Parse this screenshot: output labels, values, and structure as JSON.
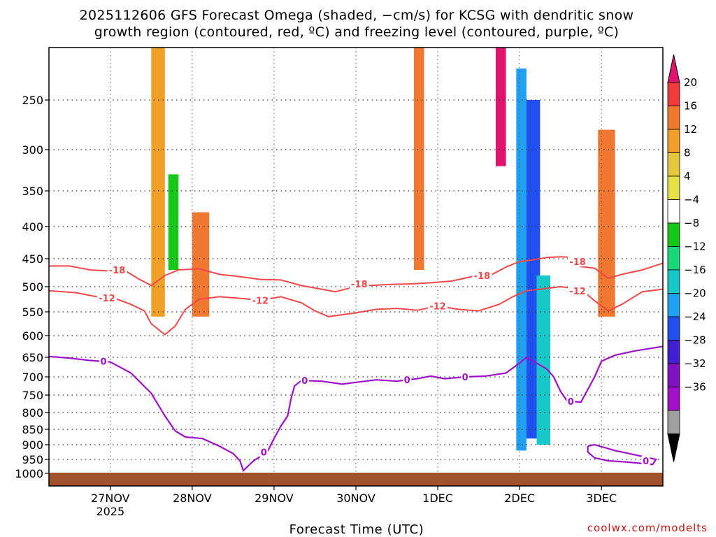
{
  "chart_data": {
    "type": "heatmap",
    "title_line1": "2025112606 GFS Forecast Omega (shaded, −cm/s) for KCSG with dendritic snow",
    "title_line2": "growth region (contoured, red, ºC) and freezing level (contoured, purple, ºC)",
    "xlabel": "Forecast Time (UTC)",
    "credit": "coolwx.com/modelts",
    "x_ticks": [
      {
        "label": "27NOV",
        "sub": "2025",
        "hour": 18
      },
      {
        "label": "28NOV",
        "sub": "",
        "hour": 42
      },
      {
        "label": "29NOV",
        "sub": "",
        "hour": 66
      },
      {
        "label": "30NOV",
        "sub": "",
        "hour": 90
      },
      {
        "label": "1DEC",
        "sub": "",
        "hour": 114
      },
      {
        "label": "2DEC",
        "sub": "",
        "hour": 138
      },
      {
        "label": "3DEC",
        "sub": "",
        "hour": 162
      }
    ],
    "x_range_hours": [
      0,
      180
    ],
    "y_ticks": [
      {
        "label": "250",
        "p": 250
      },
      {
        "label": "300",
        "p": 300
      },
      {
        "label": "350",
        "p": 350
      },
      {
        "label": "400",
        "p": 400
      },
      {
        "label": "450",
        "p": 450
      },
      {
        "label": "500",
        "p": 500
      },
      {
        "label": "550",
        "p": 550
      },
      {
        "label": "600",
        "p": 600
      },
      {
        "label": "650",
        "p": 650
      },
      {
        "label": "700",
        "p": 700
      },
      {
        "label": "750",
        "p": 750
      },
      {
        "label": "800",
        "p": 800
      },
      {
        "label": "850",
        "p": 850
      },
      {
        "label": "900",
        "p": 900
      },
      {
        "label": "950",
        "p": 950
      },
      {
        "label": "1000",
        "p": 1000
      }
    ],
    "y_range_hPa": [
      200,
      1020
    ],
    "surface_pressure_hPa": 1000,
    "colorbar": {
      "labels": [
        "20",
        "16",
        "12",
        "8",
        "4",
        "−4",
        "−8",
        "−12",
        "−16",
        "−20",
        "−24",
        "−28",
        "−32",
        "−36"
      ],
      "colors": [
        "#e0146e",
        "#f03c3c",
        "#f07830",
        "#f0a028",
        "#e6c83c",
        "#e6e046",
        "#ffffff",
        "#18c818",
        "#18d878",
        "#18c8c8",
        "#20a0f0",
        "#2050f0",
        "#4020d0",
        "#8010c0",
        "#a010c8",
        "#a0a0a0",
        "#000000"
      ]
    },
    "contours": {
      "dgz_top_label": "-18",
      "dgz_bottom_label": "-12",
      "freezing_label": "0",
      "dgz_top_hPa": [
        [
          0,
          463
        ],
        [
          6,
          463
        ],
        [
          12,
          470
        ],
        [
          18,
          472
        ],
        [
          22,
          470
        ],
        [
          26,
          485
        ],
        [
          30,
          498
        ],
        [
          34,
          480
        ],
        [
          38,
          470
        ],
        [
          44,
          468
        ],
        [
          50,
          478
        ],
        [
          56,
          482
        ],
        [
          62,
          487
        ],
        [
          68,
          488
        ],
        [
          74,
          498
        ],
        [
          80,
          505
        ],
        [
          84,
          510
        ],
        [
          88,
          503
        ],
        [
          94,
          498
        ],
        [
          100,
          496
        ],
        [
          106,
          495
        ],
        [
          112,
          493
        ],
        [
          118,
          490
        ],
        [
          124,
          482
        ],
        [
          130,
          478
        ],
        [
          134,
          465
        ],
        [
          138,
          455
        ],
        [
          142,
          452
        ],
        [
          146,
          448
        ],
        [
          150,
          447
        ],
        [
          154,
          448
        ],
        [
          156,
          464
        ],
        [
          160,
          467
        ],
        [
          164,
          485
        ],
        [
          168,
          478
        ],
        [
          174,
          470
        ],
        [
          180,
          458
        ]
      ],
      "dgz_bottom_hPa": [
        [
          0,
          508
        ],
        [
          8,
          512
        ],
        [
          14,
          520
        ],
        [
          20,
          525
        ],
        [
          24,
          535
        ],
        [
          28,
          548
        ],
        [
          30,
          575
        ],
        [
          34,
          598
        ],
        [
          37,
          580
        ],
        [
          40,
          545
        ],
        [
          44,
          525
        ],
        [
          50,
          520
        ],
        [
          56,
          523
        ],
        [
          62,
          527
        ],
        [
          68,
          520
        ],
        [
          74,
          532
        ],
        [
          78,
          548
        ],
        [
          82,
          560
        ],
        [
          86,
          556
        ],
        [
          90,
          552
        ],
        [
          96,
          545
        ],
        [
          102,
          543
        ],
        [
          108,
          547
        ],
        [
          114,
          538
        ],
        [
          120,
          545
        ],
        [
          126,
          548
        ],
        [
          132,
          535
        ],
        [
          136,
          520
        ],
        [
          140,
          508
        ],
        [
          144,
          505
        ],
        [
          150,
          500
        ],
        [
          156,
          505
        ],
        [
          160,
          528
        ],
        [
          164,
          548
        ],
        [
          168,
          535
        ],
        [
          174,
          510
        ],
        [
          180,
          505
        ]
      ],
      "freezing_hPa": [
        [
          0,
          648
        ],
        [
          6,
          652
        ],
        [
          12,
          658
        ],
        [
          18,
          662
        ],
        [
          24,
          690
        ],
        [
          30,
          745
        ],
        [
          34,
          810
        ],
        [
          37,
          855
        ],
        [
          40,
          875
        ],
        [
          45,
          880
        ],
        [
          50,
          905
        ],
        [
          54,
          930
        ],
        [
          56,
          955
        ],
        [
          57,
          990
        ],
        [
          60,
          955
        ],
        [
          64,
          925
        ],
        [
          66,
          880
        ],
        [
          68,
          840
        ],
        [
          70,
          810
        ],
        [
          71,
          760
        ],
        [
          72,
          725
        ],
        [
          74,
          710
        ],
        [
          80,
          712
        ],
        [
          86,
          720
        ],
        [
          90,
          715
        ],
        [
          96,
          708
        ],
        [
          102,
          712
        ],
        [
          108,
          705
        ],
        [
          112,
          698
        ],
        [
          116,
          705
        ],
        [
          122,
          700
        ],
        [
          128,
          698
        ],
        [
          134,
          690
        ],
        [
          138,
          665
        ],
        [
          140,
          650
        ],
        [
          142,
          660
        ],
        [
          146,
          680
        ],
        [
          148,
          700
        ],
        [
          150,
          740
        ],
        [
          152,
          768
        ],
        [
          156,
          770
        ],
        [
          160,
          700
        ],
        [
          162,
          660
        ],
        [
          166,
          645
        ],
        [
          172,
          635
        ],
        [
          180,
          625
        ]
      ],
      "freezing_low_loop_hPa": [
        [
          158,
          905
        ],
        [
          160,
          900
        ],
        [
          166,
          920
        ],
        [
          172,
          935
        ],
        [
          178,
          950
        ],
        [
          177,
          968
        ],
        [
          170,
          960
        ],
        [
          164,
          955
        ],
        [
          160,
          945
        ],
        [
          158,
          925
        ],
        [
          158,
          905
        ]
      ]
    },
    "omega_blobs": [
      {
        "h": [
          137,
          140
        ],
        "p": [
          220,
          920
        ],
        "value": -24
      },
      {
        "h": [
          140,
          144
        ],
        "p": [
          250,
          880
        ],
        "value": -28
      },
      {
        "h": [
          143,
          147
        ],
        "p": [
          480,
          900
        ],
        "value": -20
      },
      {
        "h": [
          131,
          134
        ],
        "p": [
          200,
          320
        ],
        "value": 20
      },
      {
        "h": [
          30,
          34
        ],
        "p": [
          200,
          560
        ],
        "value": 8
      },
      {
        "h": [
          42,
          47
        ],
        "p": [
          380,
          560
        ],
        "value": 12
      },
      {
        "h": [
          161,
          166
        ],
        "p": [
          280,
          560
        ],
        "value": 12
      },
      {
        "h": [
          107,
          110
        ],
        "p": [
          200,
          470
        ],
        "value": 12
      },
      {
        "h": [
          35,
          38
        ],
        "p": [
          330,
          470
        ],
        "value": -12
      },
      {
        "h": [
          151,
          156
        ],
        "p": [
          200,
          430
        ],
        "value": -8
      }
    ]
  }
}
